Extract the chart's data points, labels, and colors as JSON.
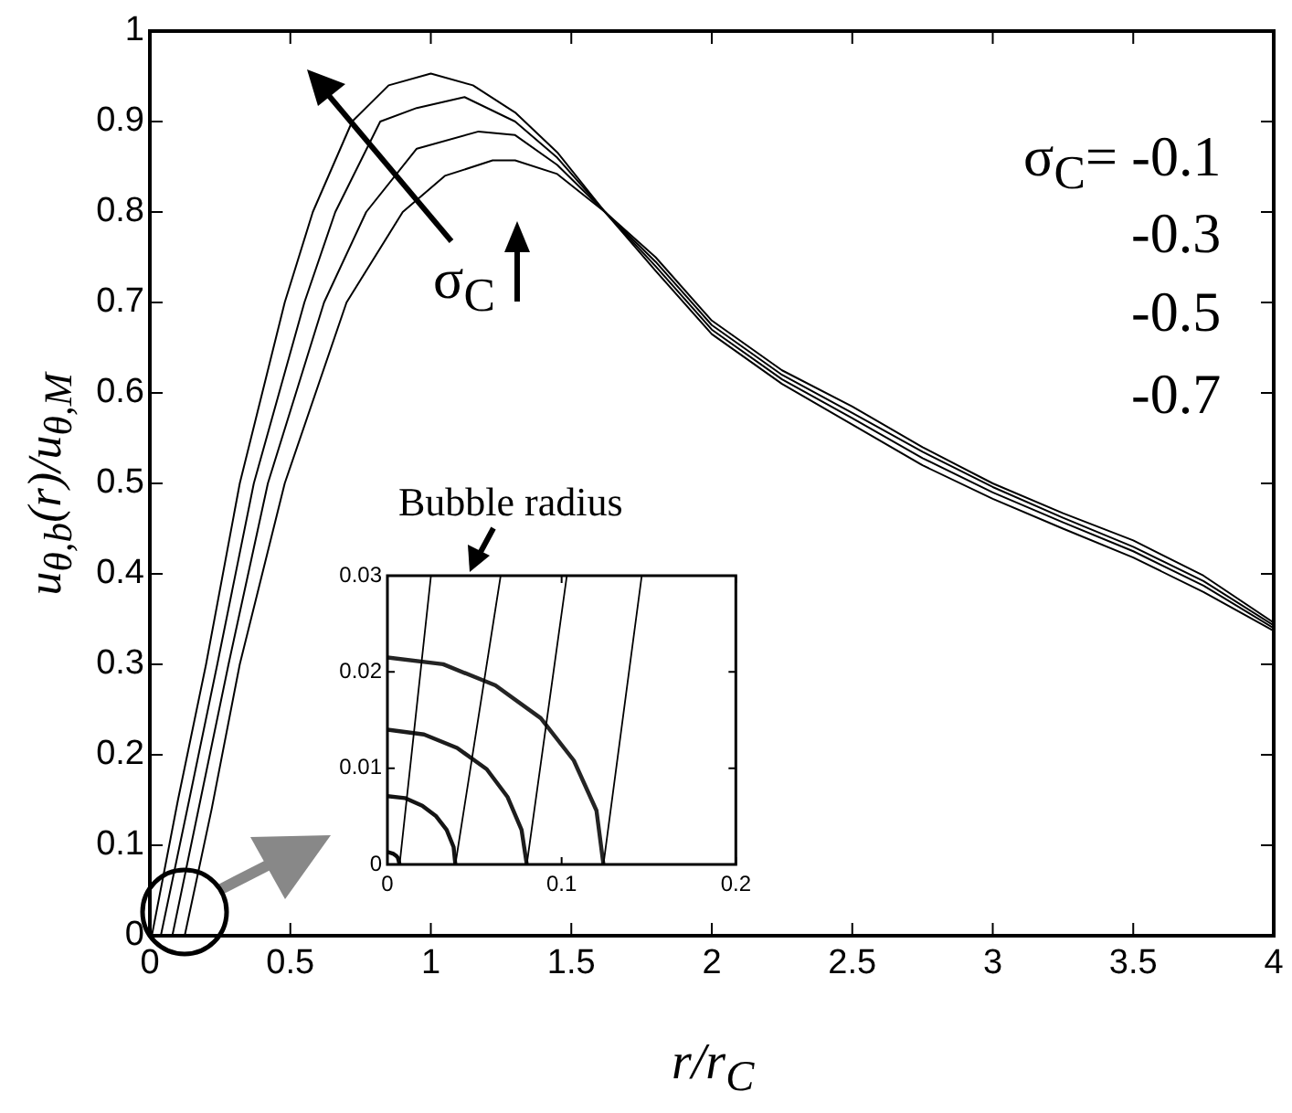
{
  "chart_data": [
    {
      "type": "line",
      "xlabel": "r/r$_{C}$",
      "ylabel": "u$_{θ,b}$(r)/u$_{θ,M}$",
      "xlim": [
        0,
        4
      ],
      "xticks": [
        0,
        0.5,
        1,
        1.5,
        2,
        2.5,
        3,
        3.5,
        4
      ],
      "ylim": [
        0,
        1
      ],
      "yticks": [
        0,
        0.1,
        0.2,
        0.3,
        0.4,
        0.5,
        0.6,
        0.7,
        0.8,
        0.9,
        1
      ],
      "grid": false,
      "legend": false,
      "annotations": [
        "σ$_{C}$= -0.1",
        "-0.3",
        "-0.5",
        "-0.7",
        "σ$_{C}$",
        "Bubble radius"
      ],
      "series": [
        {
          "color": "#000000",
          "x": [
            0.007,
            0.1,
            0.2,
            0.32,
            0.48,
            0.58,
            0.72,
            0.85,
            1.0,
            1.15,
            1.3,
            1.45,
            1.62,
            1.8,
            2.0,
            2.25,
            2.5,
            2.75,
            3.0,
            3.25,
            3.5,
            3.75,
            4.0
          ],
          "values": [
            0,
            0.15,
            0.3,
            0.5,
            0.7,
            0.8,
            0.9,
            0.94,
            0.953,
            0.94,
            0.91,
            0.866,
            0.8,
            0.735,
            0.665,
            0.61,
            0.565,
            0.52,
            0.483,
            0.45,
            0.418,
            0.38,
            0.337
          ]
        },
        {
          "color": "#000000",
          "x": [
            0.039,
            0.14,
            0.24,
            0.37,
            0.55,
            0.66,
            0.82,
            0.95,
            1.12,
            1.3,
            1.45,
            1.62,
            1.8,
            2.0,
            2.25,
            2.5,
            2.75,
            3.0,
            3.25,
            3.5,
            3.75,
            4.0
          ],
          "values": [
            0,
            0.15,
            0.3,
            0.5,
            0.7,
            0.8,
            0.9,
            0.915,
            0.927,
            0.9,
            0.86,
            0.8,
            0.74,
            0.67,
            0.615,
            0.572,
            0.528,
            0.49,
            0.457,
            0.425,
            0.387,
            0.34
          ]
        },
        {
          "color": "#000000",
          "x": [
            0.08,
            0.18,
            0.28,
            0.42,
            0.62,
            0.77,
            0.95,
            1.17,
            1.3,
            1.45,
            1.62,
            1.8,
            2.0,
            2.25,
            2.5,
            2.75,
            3.0,
            3.25,
            3.5,
            3.75,
            4.0
          ],
          "values": [
            0,
            0.15,
            0.3,
            0.5,
            0.7,
            0.8,
            0.87,
            0.889,
            0.885,
            0.852,
            0.8,
            0.745,
            0.675,
            0.62,
            0.578,
            0.535,
            0.496,
            0.462,
            0.43,
            0.392,
            0.343
          ]
        },
        {
          "color": "#000000",
          "x": [
            0.124,
            0.22,
            0.32,
            0.48,
            0.7,
            0.9,
            1.05,
            1.22,
            1.3,
            1.45,
            1.62,
            1.8,
            2.0,
            2.25,
            2.5,
            2.75,
            3.0,
            3.25,
            3.5,
            3.75,
            4.0
          ],
          "values": [
            0,
            0.14,
            0.3,
            0.5,
            0.7,
            0.8,
            0.84,
            0.857,
            0.857,
            0.842,
            0.8,
            0.75,
            0.68,
            0.625,
            0.585,
            0.54,
            0.5,
            0.467,
            0.437,
            0.398,
            0.346
          ]
        }
      ]
    },
    {
      "type": "line",
      "xlim": [
        0,
        0.2
      ],
      "xticks": [
        0,
        0.1,
        0.2
      ],
      "ylim": [
        0,
        0.03
      ],
      "yticks": [
        0,
        0.01,
        0.02,
        0.03
      ],
      "grid": false,
      "legend": false,
      "series": [
        {
          "color": "#000000",
          "x": [
            0.007,
            0.025
          ],
          "values": [
            0,
            0.03
          ]
        },
        {
          "color": "#000000",
          "x": [
            0.039,
            0.065
          ],
          "values": [
            0,
            0.03
          ]
        },
        {
          "color": "#000000",
          "x": [
            0.08,
            0.103
          ],
          "values": [
            0,
            0.03
          ]
        },
        {
          "color": "#000000",
          "x": [
            0.124,
            0.146
          ],
          "values": [
            0,
            0.03
          ]
        },
        {
          "color": "#0c0c0c",
          "x": [
            0,
            0.0035,
            0.005,
            0.006,
            0.007
          ],
          "values": [
            0.0013,
            0.0011,
            0.0009,
            0.0007,
            0
          ]
        },
        {
          "color": "#141414",
          "x": [
            0,
            0.01,
            0.02,
            0.028,
            0.034,
            0.038,
            0.039
          ],
          "values": [
            0.0071,
            0.0069,
            0.0061,
            0.005,
            0.0036,
            0.0018,
            0
          ]
        },
        {
          "color": "#1c1c1c",
          "x": [
            0,
            0.021,
            0.04,
            0.057,
            0.069,
            0.077,
            0.08
          ],
          "values": [
            0.014,
            0.0135,
            0.0121,
            0.0099,
            0.007,
            0.0036,
            0
          ]
        },
        {
          "color": "#242424",
          "x": [
            0,
            0.032,
            0.062,
            0.088,
            0.107,
            0.12,
            0.124
          ],
          "values": [
            0.0215,
            0.0208,
            0.0186,
            0.0152,
            0.0108,
            0.0056,
            0
          ]
        }
      ]
    }
  ]
}
